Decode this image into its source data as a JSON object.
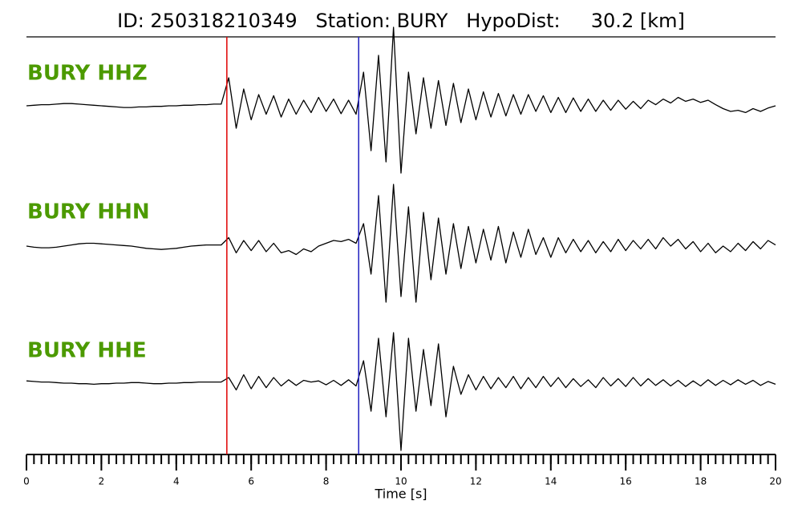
{
  "chart_data": {
    "type": "seismogram",
    "title": "ID: 250318210349   Station: BURY   HypoDist:     30.2 [km]",
    "x_label": "Time [s]",
    "xlim": [
      0,
      20
    ],
    "xticks": [
      0,
      2,
      4,
      6,
      8,
      10,
      12,
      14,
      16,
      18,
      20
    ],
    "xminor": 0.2,
    "picks": [
      {
        "time": 5.35,
        "color": "#e00000"
      },
      {
        "time": 8.87,
        "color": "#2020c0"
      }
    ],
    "x": [
      0,
      0.2,
      0.4,
      0.6,
      0.8,
      1,
      1.2,
      1.4,
      1.6,
      1.8,
      2,
      2.2,
      2.4,
      2.6,
      2.8,
      3,
      3.2,
      3.4,
      3.6,
      3.8,
      4,
      4.2,
      4.4,
      4.6,
      4.8,
      5,
      5.2,
      5.4,
      5.6,
      5.8,
      6,
      6.2,
      6.4,
      6.6,
      6.8,
      7,
      7.2,
      7.4,
      7.6,
      7.8,
      8,
      8.2,
      8.4,
      8.6,
      8.8,
      9,
      9.2,
      9.4,
      9.6,
      9.8,
      10,
      10.2,
      10.4,
      10.6,
      10.8,
      11,
      11.2,
      11.4,
      11.6,
      11.8,
      12,
      12.2,
      12.4,
      12.6,
      12.8,
      13,
      13.2,
      13.4,
      13.6,
      13.8,
      14,
      14.2,
      14.4,
      14.6,
      14.8,
      15,
      15.2,
      15.4,
      15.6,
      15.8,
      16,
      16.2,
      16.4,
      16.6,
      16.8,
      17,
      17.2,
      17.4,
      17.6,
      17.8,
      18,
      18.2,
      18.4,
      18.6,
      18.8,
      19,
      19.2,
      19.4,
      19.6,
      19.8,
      20
    ],
    "series": [
      {
        "name": "BURY HHZ",
        "color": "#000000",
        "values": [
          0,
          0.01,
          0.02,
          0.02,
          0.03,
          0.04,
          0.04,
          0.03,
          0.02,
          0.01,
          0,
          -0.01,
          -0.02,
          -0.03,
          -0.03,
          -0.02,
          -0.02,
          -0.01,
          -0.01,
          0,
          0,
          0.01,
          0.01,
          0.02,
          0.02,
          0.03,
          0.03,
          0.5,
          -0.4,
          0.3,
          -0.25,
          0.2,
          -0.15,
          0.18,
          -0.2,
          0.12,
          -0.15,
          0.1,
          -0.12,
          0.15,
          -0.1,
          0.12,
          -0.14,
          0.1,
          -0.15,
          0.6,
          -0.8,
          0.9,
          -1.0,
          1.4,
          -1.2,
          0.6,
          -0.5,
          0.5,
          -0.4,
          0.45,
          -0.35,
          0.4,
          -0.3,
          0.3,
          -0.25,
          0.25,
          -0.2,
          0.22,
          -0.18,
          0.2,
          -0.15,
          0.2,
          -0.1,
          0.18,
          -0.12,
          0.15,
          -0.12,
          0.14,
          -0.1,
          0.12,
          -0.1,
          0.1,
          -0.08,
          0.1,
          -0.06,
          0.08,
          -0.05,
          0.1,
          0.02,
          0.12,
          0.05,
          0.15,
          0.08,
          0.12,
          0.06,
          0.1,
          0.02,
          -0.05,
          -0.1,
          -0.08,
          -0.12,
          -0.05,
          -0.1,
          -0.04,
          0
        ]
      },
      {
        "name": "BURY HHN",
        "color": "#000000",
        "values": [
          0,
          -0.02,
          -0.03,
          -0.03,
          -0.02,
          0,
          0.02,
          0.04,
          0.05,
          0.05,
          0.04,
          0.03,
          0.02,
          0.01,
          0,
          -0.02,
          -0.04,
          -0.05,
          -0.06,
          -0.05,
          -0.04,
          -0.02,
          0,
          0.01,
          0.02,
          0.02,
          0.02,
          0.15,
          -0.12,
          0.1,
          -0.08,
          0.1,
          -0.1,
          0.05,
          -0.12,
          -0.08,
          -0.15,
          -0.05,
          -0.1,
          0,
          0.05,
          0.1,
          0.08,
          0.12,
          0.05,
          0.4,
          -0.5,
          0.9,
          -1.0,
          1.1,
          -0.9,
          0.7,
          -1.0,
          0.6,
          -0.6,
          0.5,
          -0.5,
          0.4,
          -0.4,
          0.35,
          -0.3,
          0.3,
          -0.25,
          0.35,
          -0.3,
          0.25,
          -0.2,
          0.3,
          -0.15,
          0.15,
          -0.2,
          0.15,
          -0.12,
          0.12,
          -0.1,
          0.1,
          -0.12,
          0.08,
          -0.1,
          0.12,
          -0.08,
          0.1,
          -0.05,
          0.12,
          -0.05,
          0.15,
          0,
          0.12,
          -0.05,
          0.08,
          -0.1,
          0.05,
          -0.12,
          0,
          -0.1,
          0.05,
          -0.08,
          0.08,
          -0.05,
          0.1,
          0.02
        ]
      },
      {
        "name": "BURY HHE",
        "color": "#000000",
        "values": [
          0.04,
          0.03,
          0.02,
          0.02,
          0.01,
          0,
          0,
          -0.01,
          -0.01,
          -0.02,
          -0.01,
          -0.01,
          0,
          0,
          0.01,
          0.01,
          0,
          -0.01,
          -0.01,
          0,
          0,
          0.01,
          0.01,
          0.02,
          0.02,
          0.02,
          0.02,
          0.1,
          -0.12,
          0.15,
          -0.1,
          0.12,
          -0.08,
          0.1,
          -0.05,
          0.06,
          -0.04,
          0.05,
          0.02,
          0.04,
          -0.03,
          0.05,
          -0.04,
          0.06,
          -0.05,
          0.4,
          -0.5,
          0.8,
          -0.6,
          0.9,
          -1.2,
          0.8,
          -0.5,
          0.6,
          -0.4,
          0.7,
          -0.6,
          0.3,
          -0.2,
          0.15,
          -0.12,
          0.12,
          -0.1,
          0.1,
          -0.08,
          0.12,
          -0.1,
          0.1,
          -0.08,
          0.12,
          -0.06,
          0.1,
          -0.08,
          0.08,
          -0.06,
          0.06,
          -0.08,
          0.1,
          -0.05,
          0.08,
          -0.06,
          0.1,
          -0.05,
          0.08,
          -0.04,
          0.06,
          -0.05,
          0.05,
          -0.06,
          0.04,
          -0.05,
          0.06,
          -0.04,
          0.05,
          -0.03,
          0.06,
          -0.02,
          0.05,
          -0.04,
          0.03,
          -0.02
        ]
      }
    ]
  }
}
